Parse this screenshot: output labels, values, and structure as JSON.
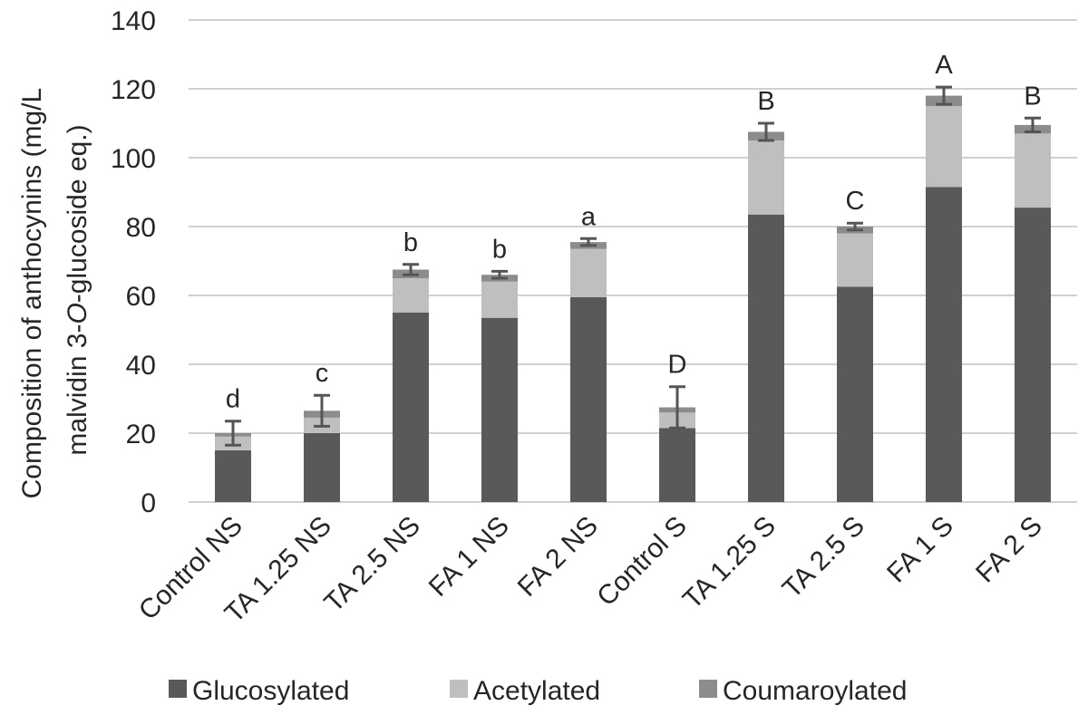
{
  "chart_data": {
    "type": "bar",
    "stacked": true,
    "title": "",
    "ylabel": {
      "line1": "Composition of anthocynins (mg/L",
      "line2_pre": "malvidin 3-",
      "line2_italic": "O",
      "line2_post": "-glucoside eq.)"
    },
    "xlabel": "",
    "ylim": [
      0,
      140
    ],
    "yticks": [
      0,
      20,
      40,
      60,
      80,
      100,
      120,
      140
    ],
    "grid": true,
    "legend_position": "bottom",
    "categories": [
      "Control NS",
      "TA 1.25 NS",
      "TA 2.5 NS",
      "FA 1 NS",
      "FA 2 NS",
      "Control S",
      "TA 1.25 S",
      "TA 2.5 S",
      "FA 1 S",
      "FA 2 S"
    ],
    "series": [
      {
        "name": "Glucosylated",
        "color": "#595959",
        "values": [
          15,
          20,
          55,
          53.5,
          59.5,
          21.5,
          83.5,
          62.5,
          91.5,
          85.5
        ]
      },
      {
        "name": "Acetylated",
        "color": "#bfbfbf",
        "values": [
          4,
          4.5,
          10,
          10.5,
          14,
          4.5,
          21.5,
          15.5,
          23.5,
          21.5
        ]
      },
      {
        "name": "Coumaroylated",
        "color": "#8c8c8c",
        "values": [
          1,
          2,
          2.5,
          2,
          2,
          1.5,
          2.5,
          2,
          3,
          2.5
        ]
      }
    ],
    "error_bars": [
      3.5,
      4.5,
      1.5,
      1,
      1,
      6,
      2.5,
      1,
      2.5,
      2
    ],
    "significance_letters": [
      "d",
      "c",
      "b",
      "b",
      "a",
      "D",
      "B",
      "C",
      "A",
      "B"
    ]
  }
}
